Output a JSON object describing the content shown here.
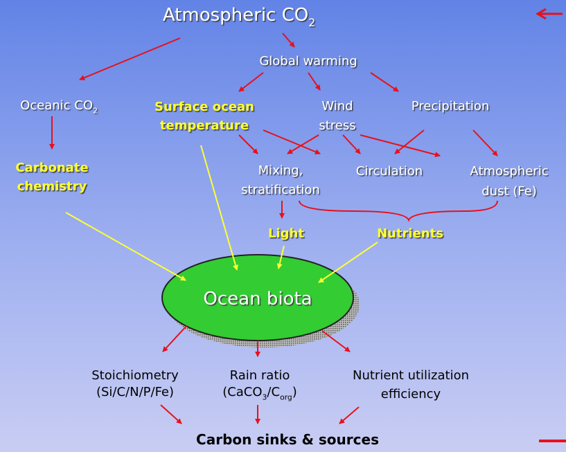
{
  "nodes": [
    {
      "lines": [
        [
          "Atmospheric CO",
          "2"
        ]
      ]
    },
    {
      "lines": [
        "Global warming"
      ]
    },
    {
      "lines": [
        [
          "Oceanic CO",
          "2"
        ]
      ]
    },
    {
      "lines": [
        "Surface ocean",
        "temperature"
      ]
    },
    {
      "lines": [
        "Wind",
        "stress"
      ]
    },
    {
      "lines": [
        "Precipitation"
      ]
    },
    {
      "lines": [
        "Carbonate",
        "chemistry"
      ]
    },
    {
      "lines": [
        "Mixing,",
        "stratification"
      ]
    },
    {
      "lines": [
        "Circulation"
      ]
    },
    {
      "lines": [
        "Atmospheric",
        "dust (Fe)"
      ]
    },
    {
      "lines": [
        "Light"
      ]
    },
    {
      "lines": [
        "Nutrients"
      ]
    },
    {
      "lines": [
        "Ocean biota"
      ]
    },
    {
      "lines": [
        "Stoichiometry",
        "(Si/C/N/P/Fe)"
      ]
    },
    {
      "lines": [
        "Rain ratio",
        [
          "(CaCO",
          "3",
          "/C",
          "org",
          ")"
        ]
      ]
    },
    {
      "lines": [
        "Nutrient utilization",
        "efficiency"
      ]
    },
    {
      "lines": [
        "Carbon sinks & sources"
      ]
    }
  ]
}
